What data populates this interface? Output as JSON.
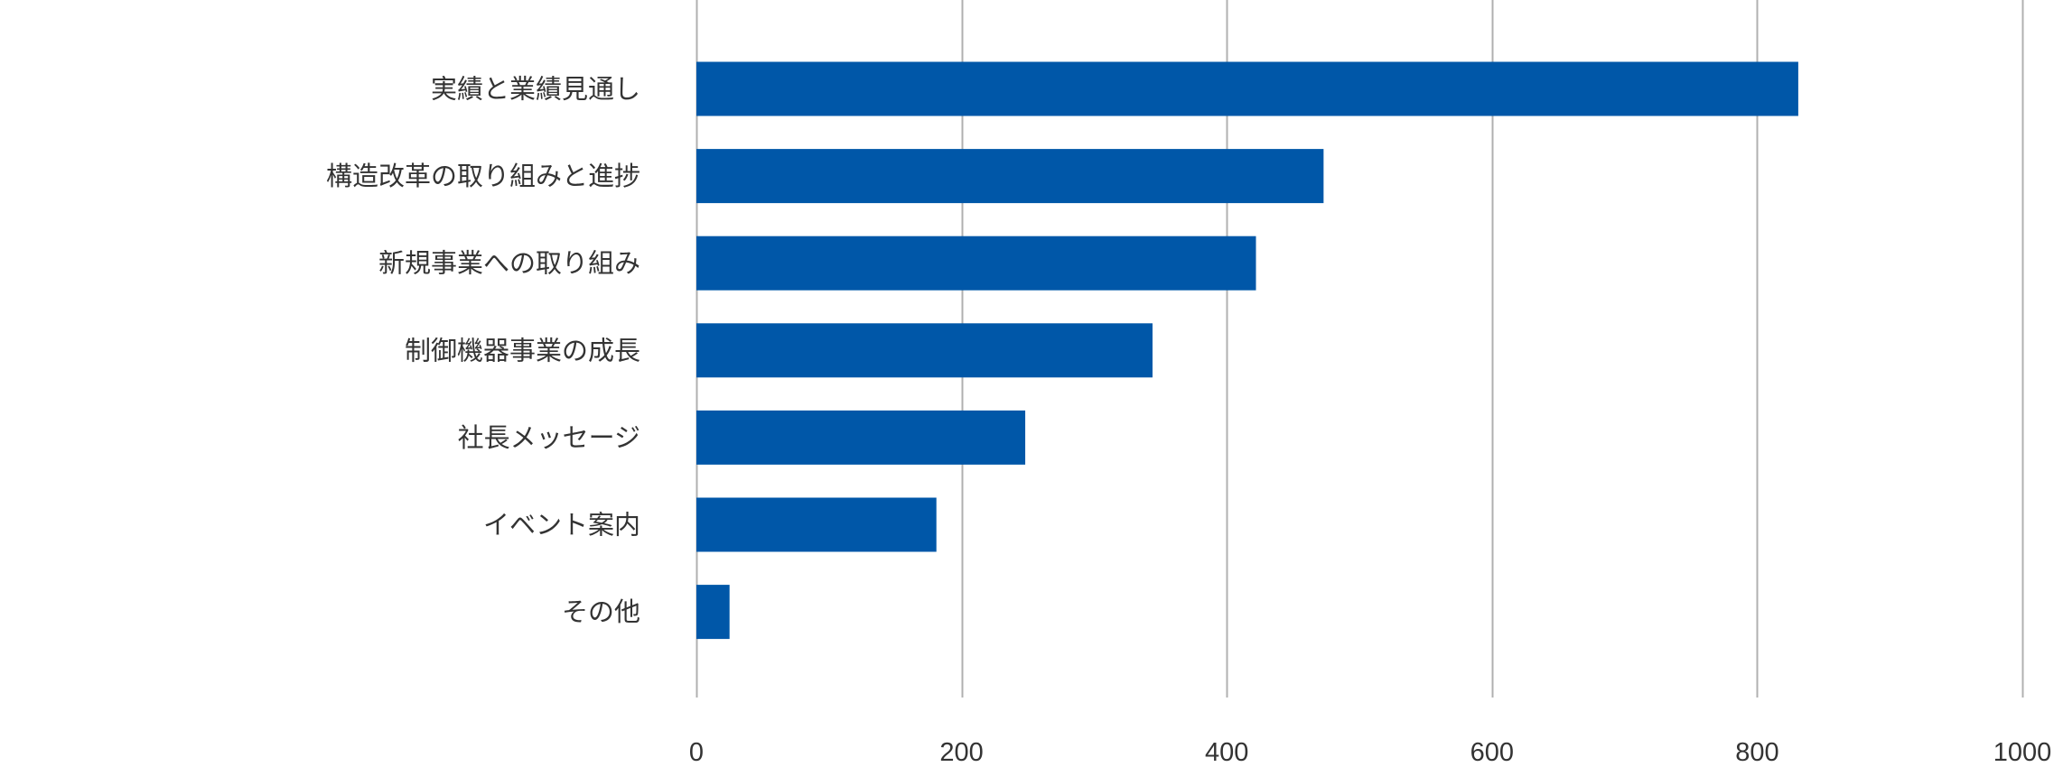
{
  "chart_data": {
    "type": "bar",
    "orientation": "horizontal",
    "title": "",
    "xlabel": "",
    "ylabel": "",
    "categories": [
      "実績と業績見通し",
      "構造改革の取り組みと進捗",
      "新規事業への取り組み",
      "制御機器事業の成長",
      "社長メッセージ",
      "イベント案内",
      "その他"
    ],
    "values": [
      831,
      473,
      422,
      344,
      248,
      181,
      25
    ],
    "xlim": [
      0,
      1000
    ],
    "xticks": [
      "0",
      "200",
      "400",
      "600",
      "800",
      "1000"
    ],
    "grid": true,
    "legend": "none",
    "colors": {
      "bar": "#0057a8",
      "grid": "#b0b0b0",
      "text": "#333333"
    }
  }
}
